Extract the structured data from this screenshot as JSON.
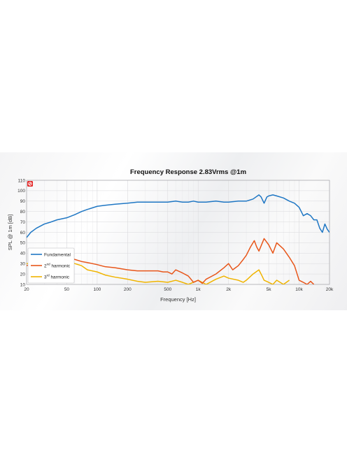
{
  "chart_data": {
    "type": "line",
    "title": "Frequency Response 2.83Vrms @1m",
    "xlabel": "Frequency [Hz]",
    "ylabel": "SPL @ 1m [dB]",
    "x_scale": "log",
    "xlim": [
      20,
      20000
    ],
    "ylim": [
      10,
      110
    ],
    "x_ticks": [
      {
        "value": 20,
        "label": "20"
      },
      {
        "value": 50,
        "label": "50"
      },
      {
        "value": 100,
        "label": "100"
      },
      {
        "value": 200,
        "label": "200"
      },
      {
        "value": 500,
        "label": "500"
      },
      {
        "value": 1000,
        "label": "1k"
      },
      {
        "value": 2000,
        "label": "2k"
      },
      {
        "value": 5000,
        "label": "5k"
      },
      {
        "value": 10000,
        "label": "10k"
      },
      {
        "value": 20000,
        "label": "20k"
      }
    ],
    "y_ticks": [
      10,
      20,
      30,
      40,
      50,
      60,
      70,
      80,
      90,
      100,
      110
    ],
    "grid": true,
    "legend_position": "bottom-left",
    "series": [
      {
        "name": "Fundamental",
        "color": "#1f77c4",
        "points": [
          [
            20,
            55
          ],
          [
            22,
            60
          ],
          [
            25,
            64
          ],
          [
            30,
            68
          ],
          [
            35,
            70
          ],
          [
            40,
            72
          ],
          [
            50,
            74
          ],
          [
            60,
            77
          ],
          [
            70,
            80
          ],
          [
            80,
            82
          ],
          [
            100,
            85
          ],
          [
            120,
            86
          ],
          [
            150,
            87
          ],
          [
            200,
            88
          ],
          [
            250,
            89
          ],
          [
            300,
            89
          ],
          [
            400,
            89
          ],
          [
            500,
            89
          ],
          [
            600,
            90
          ],
          [
            700,
            89
          ],
          [
            800,
            89
          ],
          [
            900,
            90
          ],
          [
            1000,
            89
          ],
          [
            1200,
            89
          ],
          [
            1500,
            90
          ],
          [
            1800,
            89
          ],
          [
            2000,
            89
          ],
          [
            2500,
            90
          ],
          [
            3000,
            90
          ],
          [
            3500,
            92
          ],
          [
            4000,
            96
          ],
          [
            4200,
            94
          ],
          [
            4500,
            88
          ],
          [
            4800,
            94
          ],
          [
            5000,
            95
          ],
          [
            5500,
            96
          ],
          [
            6000,
            95
          ],
          [
            7000,
            93
          ],
          [
            8000,
            90
          ],
          [
            9000,
            88
          ],
          [
            10000,
            84
          ],
          [
            10500,
            80
          ],
          [
            11000,
            76
          ],
          [
            12000,
            78
          ],
          [
            13000,
            76
          ],
          [
            14000,
            72
          ],
          [
            15000,
            72
          ],
          [
            16000,
            64
          ],
          [
            17000,
            60
          ],
          [
            18000,
            68
          ],
          [
            19000,
            63
          ],
          [
            20000,
            60
          ]
        ]
      },
      {
        "name": "2nd harmonic",
        "color": "#e8561a",
        "points": [
          [
            20,
            28
          ],
          [
            25,
            31
          ],
          [
            30,
            34
          ],
          [
            40,
            36
          ],
          [
            50,
            37
          ],
          [
            60,
            34
          ],
          [
            70,
            32
          ],
          [
            80,
            31
          ],
          [
            100,
            29
          ],
          [
            120,
            27
          ],
          [
            150,
            26
          ],
          [
            200,
            24
          ],
          [
            250,
            23
          ],
          [
            300,
            23
          ],
          [
            400,
            23
          ],
          [
            450,
            22
          ],
          [
            500,
            22
          ],
          [
            550,
            20
          ],
          [
            600,
            24
          ],
          [
            700,
            21
          ],
          [
            800,
            18
          ],
          [
            900,
            12
          ],
          [
            1000,
            14
          ],
          [
            1100,
            11
          ],
          [
            1200,
            15
          ],
          [
            1500,
            20
          ],
          [
            1800,
            26
          ],
          [
            2000,
            30
          ],
          [
            2200,
            24
          ],
          [
            2500,
            28
          ],
          [
            2800,
            34
          ],
          [
            3000,
            38
          ],
          [
            3300,
            46
          ],
          [
            3600,
            52
          ],
          [
            3800,
            46
          ],
          [
            4000,
            42
          ],
          [
            4500,
            54
          ],
          [
            5000,
            48
          ],
          [
            5500,
            40
          ],
          [
            6000,
            50
          ],
          [
            7000,
            44
          ],
          [
            8000,
            36
          ],
          [
            9000,
            28
          ],
          [
            10000,
            14
          ],
          [
            11000,
            12
          ],
          [
            12000,
            10
          ],
          [
            13000,
            13
          ],
          [
            14000,
            10
          ]
        ]
      },
      {
        "name": "3rd harmonic",
        "color": "#f0b400",
        "points": [
          [
            20,
            30
          ],
          [
            30,
            32
          ],
          [
            40,
            33
          ],
          [
            50,
            32
          ],
          [
            60,
            30
          ],
          [
            70,
            28
          ],
          [
            80,
            24
          ],
          [
            100,
            22
          ],
          [
            120,
            19
          ],
          [
            150,
            17
          ],
          [
            200,
            15
          ],
          [
            250,
            13
          ],
          [
            300,
            12
          ],
          [
            400,
            13
          ],
          [
            500,
            12
          ],
          [
            600,
            14
          ],
          [
            700,
            12
          ],
          [
            800,
            10
          ],
          [
            1000,
            14
          ],
          [
            1200,
            10
          ],
          [
            1500,
            15
          ],
          [
            1800,
            18
          ],
          [
            2000,
            16
          ],
          [
            2500,
            14
          ],
          [
            2800,
            12
          ],
          [
            3000,
            14
          ],
          [
            3500,
            20
          ],
          [
            4000,
            24
          ],
          [
            4300,
            18
          ],
          [
            4500,
            14
          ],
          [
            5000,
            12
          ],
          [
            5500,
            10
          ],
          [
            6000,
            14
          ],
          [
            7000,
            10
          ],
          [
            8000,
            14
          ]
        ]
      }
    ],
    "legend": [
      {
        "base": "Fundamental",
        "sup": ""
      },
      {
        "base": "2",
        "sup": "nd",
        "rest": " harmonic"
      },
      {
        "base": "3",
        "sup": "rd",
        "rest": " harmonic"
      }
    ]
  }
}
